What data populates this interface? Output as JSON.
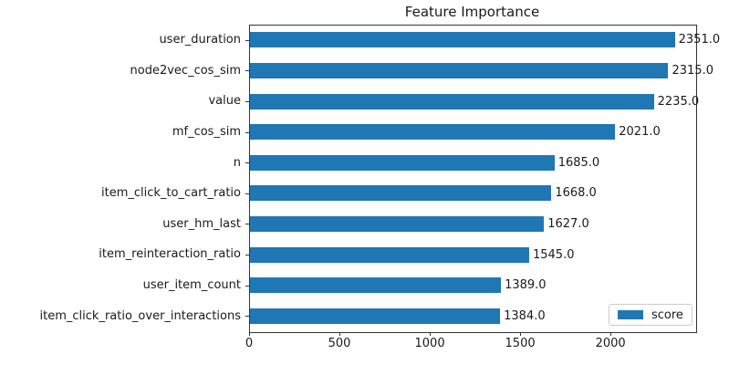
{
  "figure": {
    "background_color": "#ffffff",
    "text_color": "#1a1a1a",
    "spine_color": "#333333"
  },
  "chart_data": {
    "type": "bar",
    "orientation": "horizontal",
    "title": "Feature Importance",
    "xlabel": "",
    "ylabel": "",
    "grid": false,
    "bar_color": "#1f77b4",
    "categories": [
      "user_duration",
      "node2vec_cos_sim",
      "value",
      "mf_cos_sim",
      "n",
      "item_click_to_cart_ratio",
      "user_hm_last",
      "item_reinteraction_ratio",
      "user_item_count",
      "item_click_ratio_over_interactions"
    ],
    "series": [
      {
        "name": "score",
        "values": [
          2351.0,
          2315.0,
          2235.0,
          2021.0,
          1685.0,
          1668.0,
          1627.0,
          1545.0,
          1389.0,
          1384.0
        ]
      }
    ],
    "bar_value_labels": [
      "2351.0",
      "2315.0",
      "2235.0",
      "2021.0",
      "1685.0",
      "1668.0",
      "1627.0",
      "1545.0",
      "1389.0",
      "1384.0"
    ],
    "xticks": [
      0,
      500,
      1000,
      1500,
      2000
    ],
    "xtick_labels": [
      "0",
      "500",
      "1000",
      "1500",
      "2000"
    ],
    "xlim": [
      0,
      2469
    ],
    "legend": {
      "label": "score",
      "position": "lower right"
    }
  }
}
